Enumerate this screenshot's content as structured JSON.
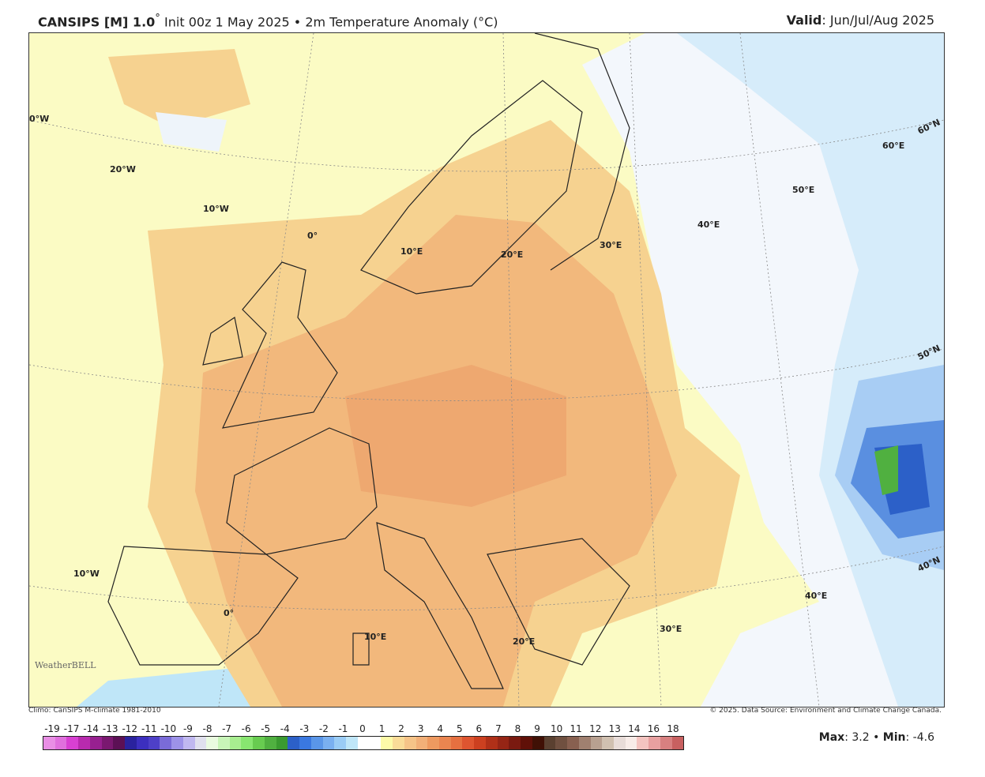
{
  "header": {
    "model": "CANSIPS [M] 1.0",
    "degree": "°",
    "subtitle": "Init 00z 1 May 2025 • 2m Temperature Anomaly (°C)",
    "valid_label": "Valid",
    "valid_value": "Jun/Jul/Aug 2025"
  },
  "map": {
    "grid_labels": [
      "0°W",
      "20°W",
      "10°W",
      "0°",
      "10°E",
      "20°E",
      "30°E",
      "40°E",
      "50°E",
      "60°E",
      "60°N",
      "50°N",
      "40°N",
      "10°W",
      "0°",
      "10°E",
      "20°E",
      "30°E",
      "40°E"
    ],
    "logo": "WeatherBELL"
  },
  "footer": {
    "climo": "Climo: CanSIPS M-climate 1981-2010",
    "credit": "© 2025. Data Source: Environment and Climate Change Canada.",
    "max_label": "Max",
    "max_value": "3.2",
    "min_label": "Min",
    "min_value": "-4.6"
  },
  "colorbar": {
    "ticks": [
      "-19",
      "-17",
      "-14",
      "-13",
      "-12",
      "-11",
      "-10",
      "-9",
      "-8",
      "-7",
      "-6",
      "-5",
      "-4",
      "-3",
      "-2",
      "-1",
      "0",
      "1",
      "2",
      "3",
      "4",
      "5",
      "6",
      "7",
      "8",
      "9",
      "10",
      "11",
      "12",
      "13",
      "14",
      "16",
      "18"
    ],
    "colors": [
      "#e98fe5",
      "#e070dd",
      "#d840d2",
      "#b82aae",
      "#982090",
      "#7a1870",
      "#5c1055",
      "#2a229e",
      "#3c2fbf",
      "#4e40c8",
      "#7a6bd8",
      "#9d92e8",
      "#c0b8f0",
      "#e0e0ee",
      "#eafbe0",
      "#c8f5b8",
      "#a8ee90",
      "#88e670",
      "#68cc50",
      "#50b040",
      "#3a9a30",
      "#2c60c8",
      "#3a78e0",
      "#5a96e8",
      "#7ab0f0",
      "#9accf5",
      "#bfe6f8",
      "#ffffff",
      "#ffffff",
      "#fdfaa8",
      "#fadc98",
      "#f6c488",
      "#f2b078",
      "#ee9a60",
      "#ea8550",
      "#e67040",
      "#de5530",
      "#cc4020",
      "#b03018",
      "#962515",
      "#7a1a10",
      "#601008",
      "#401005",
      "#5a4030",
      "#705040",
      "#886050",
      "#a08070",
      "#b8a090",
      "#d0c0b0",
      "#e8dcd8",
      "#f8ece8",
      "#f4c4c0",
      "#e8a0a0",
      "#d88080",
      "#c86060"
    ]
  }
}
